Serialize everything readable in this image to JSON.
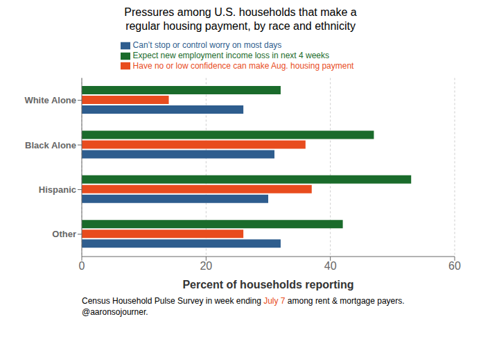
{
  "chart_data": {
    "type": "bar",
    "orientation": "horizontal",
    "title": "Pressures among U.S. households that make a\nregular housing payment, by race and ethnicity",
    "categories": [
      "White Alone",
      "Black Alone",
      "Hispanic",
      "Other"
    ],
    "series": [
      {
        "name": "Expect new employment income loss in next 4 weeks",
        "color": "#1a6b2b",
        "values": [
          32,
          47,
          53,
          42
        ]
      },
      {
        "name": "Have no or low confidence can make Aug. housing payment",
        "color": "#e84c1e",
        "values": [
          14,
          36,
          37,
          26
        ]
      },
      {
        "name": "Can’t stop or control worry on most days",
        "color": "#2e5d8e",
        "values": [
          26,
          31,
          30,
          32
        ]
      }
    ],
    "xlabel": "Percent of households reporting",
    "xlim": [
      0,
      60
    ],
    "xticks": [
      0,
      20,
      40,
      60
    ],
    "grid": true,
    "legend": "top",
    "annotations": [
      [
        {
          "text": "Census Household Pulse Survey in week ending "
        },
        {
          "text": "July 7",
          "color": "#e84c1e"
        },
        {
          "text": " among rent & mortgage payers."
        }
      ],
      [
        {
          "text": "@aaronsojourner."
        }
      ]
    ]
  }
}
